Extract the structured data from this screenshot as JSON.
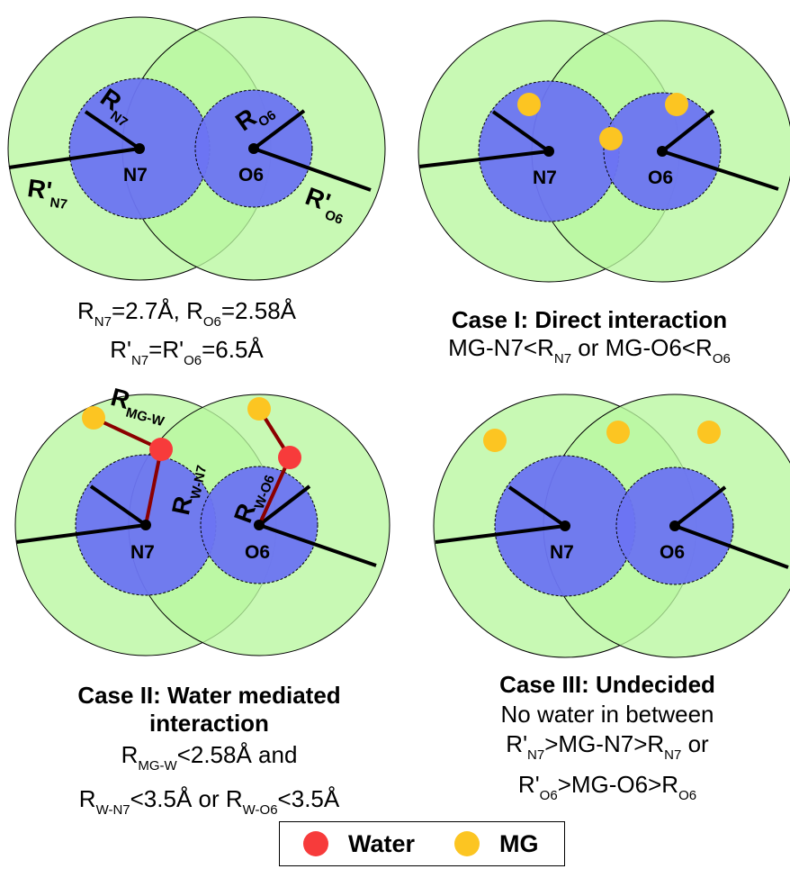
{
  "colors": {
    "outer_circle": "#b9f79f",
    "inner_circle": "#6b74f2",
    "water": "#f73b3b",
    "mg": "#fcc522",
    "bond": "#8b0000"
  },
  "panels": {
    "top_left": {
      "n7": "N7",
      "o6": "O6",
      "r_n7": "R",
      "r_n7_sub": "N7",
      "r_o6": "R",
      "r_o6_sub": "O6",
      "rp_n7": "R'",
      "rp_n7_sub": "N7",
      "rp_o6": "R'",
      "rp_o6_sub": "O6"
    },
    "top_right": {
      "n7": "N7",
      "o6": "O6"
    },
    "bottom_left": {
      "n7": "N7",
      "o6": "O6",
      "r_mgw": "R",
      "r_mgw_sub": "MG-W",
      "r_wn7": "R",
      "r_wn7_sub": "W-N7",
      "r_wo6": "R",
      "r_wo6_sub": "W-O6"
    },
    "bottom_right": {
      "n7": "N7",
      "o6": "O6"
    }
  },
  "captions": {
    "radii": {
      "line1_a": "R",
      "line1_a_sub": "N7",
      "line1_b": "=2.7Å, R",
      "line1_b_sub": "O6",
      "line1_c": "=2.58Å",
      "line2_a": "R'",
      "line2_a_sub": "N7",
      "line2_b": "=R'",
      "line2_b_sub": "O6",
      "line2_c": "=6.5Å"
    },
    "case1": {
      "title": "Case I: Direct interaction",
      "a": "MG-N7<R",
      "a_sub": "N7",
      "b": " or MG-O6<R",
      "b_sub": "O6"
    },
    "case2": {
      "title1": "Case II: Water mediated",
      "title2": "interaction",
      "a": "R",
      "a_sub": "MG-W",
      "b": "<2.58Å and",
      "c": "R",
      "c_sub": "W-N7",
      "d": "<3.5Å or R",
      "d_sub": "W-O6",
      "e": "<3.5Å"
    },
    "case3": {
      "title": "Case III: Undecided",
      "line1": "No water in between",
      "a": "R'",
      "a_sub": "N7",
      "b": ">MG-N7>R",
      "b_sub": "N7",
      "c": " or",
      "d": "R'",
      "d_sub": "O6",
      "e": ">MG-O6>R",
      "e_sub": "O6"
    }
  },
  "legend": {
    "water": "Water",
    "mg": "MG"
  }
}
